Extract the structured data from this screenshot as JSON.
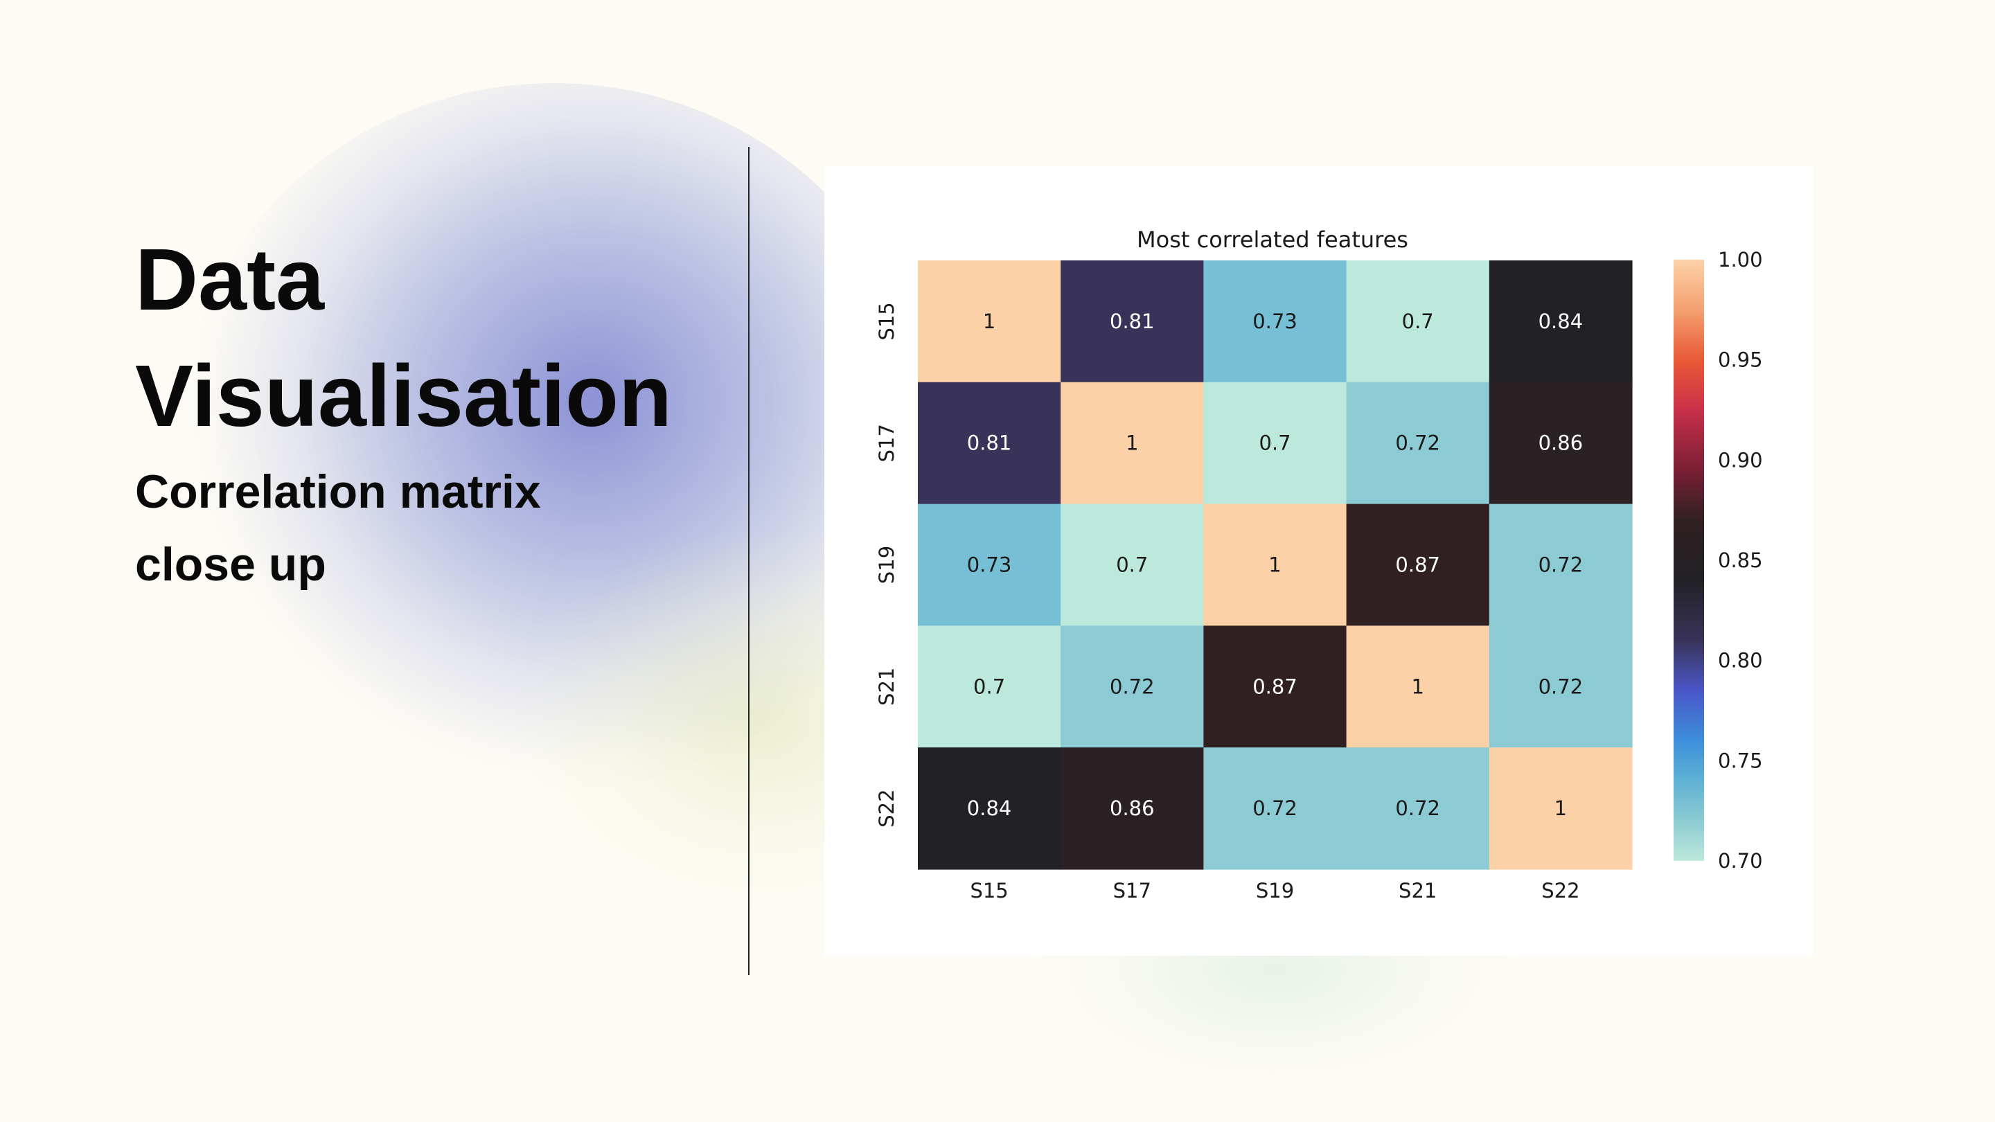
{
  "slide": {
    "title": "Data Visualisation",
    "subtitle": "Correlation matrix close up"
  },
  "chart_data": {
    "type": "heatmap",
    "title": "Most correlated features",
    "x_labels": [
      "S15",
      "S17",
      "S19",
      "S21",
      "S22"
    ],
    "y_labels": [
      "S15",
      "S17",
      "S19",
      "S21",
      "S22"
    ],
    "values": [
      [
        1,
        0.81,
        0.73,
        0.7,
        0.84
      ],
      [
        0.81,
        1,
        0.7,
        0.72,
        0.86
      ],
      [
        0.73,
        0.7,
        1,
        0.87,
        0.72
      ],
      [
        0.7,
        0.72,
        0.87,
        1,
        0.72
      ],
      [
        0.84,
        0.86,
        0.72,
        0.72,
        1
      ]
    ],
    "cell_labels": [
      [
        "1",
        "0.81",
        "0.73",
        "0.7",
        "0.84"
      ],
      [
        "0.81",
        "1",
        "0.7",
        "0.72",
        "0.86"
      ],
      [
        "0.73",
        "0.7",
        "1",
        "0.87",
        "0.72"
      ],
      [
        "0.7",
        "0.72",
        "0.87",
        "1",
        "0.72"
      ],
      [
        "0.84",
        "0.86",
        "0.72",
        "0.72",
        "1"
      ]
    ],
    "colorbar": {
      "range": [
        0.7,
        1.0
      ],
      "ticks": [
        "1.00",
        "0.95",
        "0.90",
        "0.85",
        "0.80",
        "0.75",
        "0.70"
      ],
      "colormap": "icefire",
      "stops": [
        {
          "v": 0.7,
          "color": "#bde8dc"
        },
        {
          "v": 0.72,
          "color": "#8ccbd3"
        },
        {
          "v": 0.74,
          "color": "#5fb2d4"
        },
        {
          "v": 0.76,
          "color": "#3d8fdb"
        },
        {
          "v": 0.785,
          "color": "#4a57c8"
        },
        {
          "v": 0.81,
          "color": "#393359"
        },
        {
          "v": 0.84,
          "color": "#222126"
        },
        {
          "v": 0.87,
          "color": "#302022"
        },
        {
          "v": 0.895,
          "color": "#7a1f35"
        },
        {
          "v": 0.925,
          "color": "#c9304a"
        },
        {
          "v": 0.95,
          "color": "#e95a36"
        },
        {
          "v": 0.975,
          "color": "#f4a070"
        },
        {
          "v": 1.0,
          "color": "#fdd1a8"
        }
      ]
    }
  }
}
